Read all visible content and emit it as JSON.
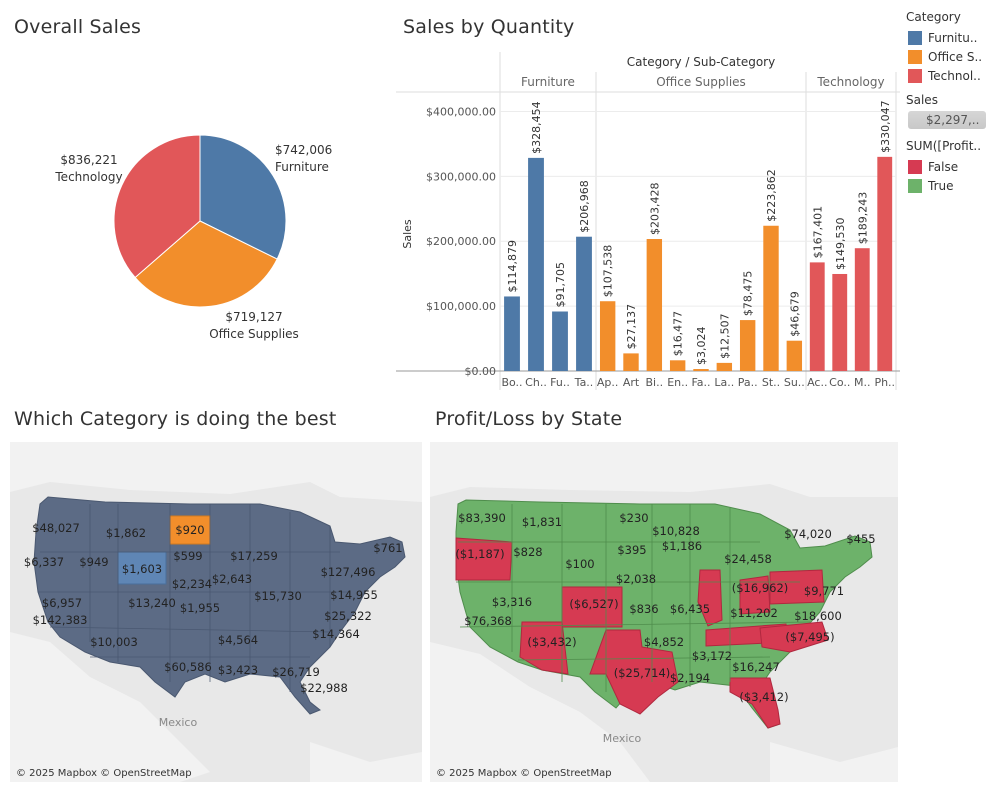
{
  "titles": {
    "overall_sales": "Overall Sales",
    "sales_by_quantity": "Sales by Quantity",
    "best_category": "Which Category is doing the best",
    "profit_by_state": "Profit/Loss by State"
  },
  "colors": {
    "furniture": "#4e79a7",
    "office_supplies": "#f28e2b",
    "technology": "#e15759",
    "false": "#d63a52",
    "true": "#6db26a",
    "map_fill": "#5c6b85",
    "map_bg": "#e8e8e8"
  },
  "legend": {
    "category_title": "Category",
    "categories": [
      "Furnitu..",
      "Office S..",
      "Technol.."
    ],
    "sales_title": "Sales",
    "sales_value": "$2,297,..",
    "profit_title": "SUM([Profit..",
    "profit_items": [
      "False",
      "True"
    ]
  },
  "pie": {
    "chart_data": {
      "type": "pie",
      "slices": [
        {
          "name": "Furniture",
          "value": 742006,
          "label": "$742,006"
        },
        {
          "name": "Office Supplies",
          "value": 719127,
          "label": "$719,127"
        },
        {
          "name": "Technology",
          "value": 836221,
          "label": "$836,221"
        }
      ]
    }
  },
  "bar": {
    "header": "Category / Sub-Category",
    "ylabel": "Sales",
    "groups": [
      "Furniture",
      "Office Supplies",
      "Technology"
    ],
    "yticks": [
      "$400,000.00",
      "$300,000.00",
      "$200,000.00",
      "$100,000.00",
      "$0.00"
    ],
    "chart_data": {
      "type": "bar",
      "ylim": [
        0,
        430000
      ],
      "bars": [
        {
          "cat": "Bo..",
          "group": 0,
          "value": 114879,
          "label": "$114,879"
        },
        {
          "cat": "Ch..",
          "group": 0,
          "value": 328454,
          "label": "$328,454"
        },
        {
          "cat": "Fu..",
          "group": 0,
          "value": 91705,
          "label": "$91,705"
        },
        {
          "cat": "Ta..",
          "group": 0,
          "value": 206968,
          "label": "$206,968"
        },
        {
          "cat": "Ap..",
          "group": 1,
          "value": 107538,
          "label": "$107,538"
        },
        {
          "cat": "Art",
          "group": 1,
          "value": 27137,
          "label": "$27,137"
        },
        {
          "cat": "Bi..",
          "group": 1,
          "value": 203428,
          "label": "$203,428"
        },
        {
          "cat": "En..",
          "group": 1,
          "value": 16477,
          "label": "$16,477"
        },
        {
          "cat": "Fa..",
          "group": 1,
          "value": 3024,
          "label": "$3,024"
        },
        {
          "cat": "La..",
          "group": 1,
          "value": 12507,
          "label": "$12,507"
        },
        {
          "cat": "Pa..",
          "group": 1,
          "value": 78475,
          "label": "$78,475"
        },
        {
          "cat": "St..",
          "group": 1,
          "value": 223862,
          "label": "$223,862"
        },
        {
          "cat": "Su..",
          "group": 1,
          "value": 46679,
          "label": "$46,679"
        },
        {
          "cat": "Ac..",
          "group": 2,
          "value": 167401,
          "label": "$167,401"
        },
        {
          "cat": "Co..",
          "group": 2,
          "value": 149530,
          "label": "$149,530"
        },
        {
          "cat": "M..",
          "group": 2,
          "value": 189243,
          "label": "$189,243"
        },
        {
          "cat": "Ph..",
          "group": 2,
          "value": 330047,
          "label": "$330,047"
        }
      ]
    }
  },
  "map1": {
    "attribution": "© 2025 Mapbox © OpenStreetMap",
    "country_label": "Mexico",
    "labels": [
      "$48,027",
      "$1,862",
      "$920",
      "$6,337",
      "$949",
      "$599",
      "$1,603",
      "$17,259",
      "$761",
      "$2,234",
      "$2,643",
      "$127,496",
      "$6,957",
      "$13,240",
      "$1,955",
      "$15,730",
      "$14,955",
      "$142,383",
      "$25,322",
      "$10,003",
      "$14,364",
      "$4,564",
      "$60,586",
      "$3,423",
      "$26,719",
      "$22,988"
    ]
  },
  "map2": {
    "attribution": "© 2025 Mapbox © OpenStreetMap",
    "country_label": "Mexico",
    "labels": [
      "$83,390",
      "$1,831",
      "$230",
      "$10,828",
      "$455",
      "($1,187)",
      "$828",
      "$395",
      "$100",
      "$24,458",
      "$74,020",
      "$1,186",
      "$2,038",
      "($16,962)",
      "$9,771",
      "$3,316",
      "($6,527)",
      "$836",
      "$6,435",
      "$11,202",
      "$18,600",
      "$76,368",
      "($7,495)",
      "($3,432)",
      "$4,852",
      "$3,172",
      "($25,714)",
      "$16,247",
      "$2,194",
      "($3,412)"
    ]
  }
}
